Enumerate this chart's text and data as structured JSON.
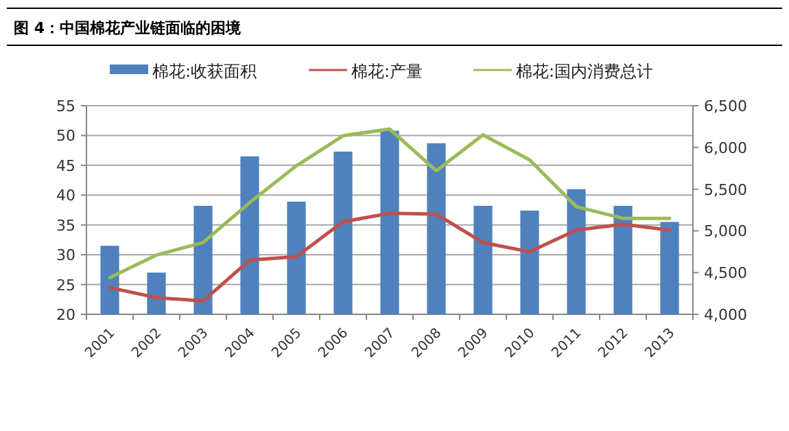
{
  "chart_data": {
    "type": "bar",
    "title": "图 4：中国棉花产业链面临的困境",
    "categories": [
      "2001",
      "2002",
      "2003",
      "2004",
      "2005",
      "2006",
      "2007",
      "2008",
      "2009",
      "2010",
      "2011",
      "2012",
      "2013"
    ],
    "series": [
      {
        "name": "棉花:收获面积",
        "color": "#4f81bd",
        "values": [
          31.5,
          27,
          38.2,
          46.5,
          38.9,
          47.3,
          50.8,
          48.7,
          38.2,
          37.4,
          41,
          38.2,
          35.5
        ]
      },
      {
        "name": "棉花:产量",
        "type": "line",
        "axis": "y2",
        "color": "#c0504d",
        "values": [
          4320,
          4200,
          4160,
          4650,
          4690,
          5110,
          5210,
          5200,
          4860,
          4750,
          5010,
          5080,
          5010
        ]
      },
      {
        "name": "棉花:国内消费总计",
        "type": "line",
        "axis": "y2",
        "color": "#9bbb59",
        "values": [
          4440,
          4710,
          4860,
          5340,
          5780,
          6140,
          6220,
          5720,
          6150,
          5850,
          5290,
          5150,
          5150
        ]
      }
    ],
    "ylim": [
      20,
      55
    ],
    "yticks": [
      20,
      25,
      30,
      35,
      40,
      45,
      50,
      55
    ],
    "y2lim": [
      4000,
      6500
    ],
    "y2ticks": [
      {
        "value": 4000,
        "label": "4,000"
      },
      {
        "value": 4500,
        "label": "4,500"
      },
      {
        "value": 5000,
        "label": "5,000"
      },
      {
        "value": 5500,
        "label": "5,500"
      },
      {
        "value": 6000,
        "label": "6,000"
      },
      {
        "value": 6500,
        "label": "6,500"
      }
    ],
    "grid": "y",
    "legend": "top"
  }
}
